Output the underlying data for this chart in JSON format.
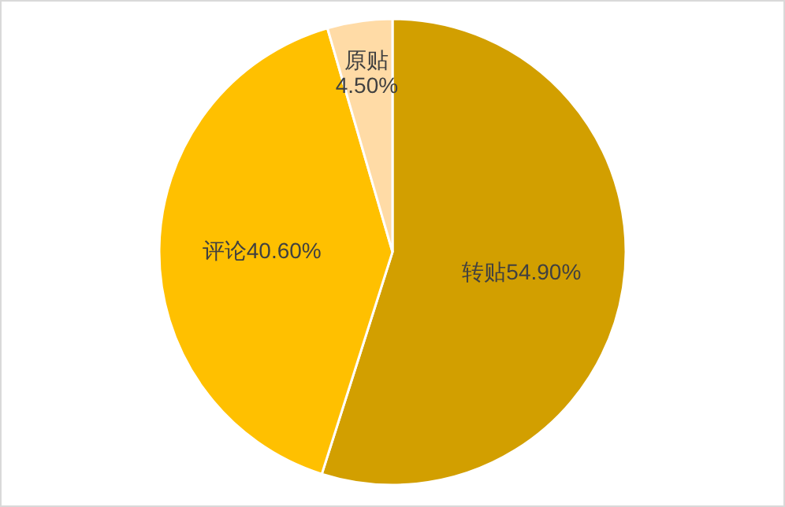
{
  "chart_data": {
    "type": "pie",
    "categories": [
      "转贴",
      "评论",
      "原贴"
    ],
    "values": [
      54.9,
      40.6,
      4.5
    ],
    "value_labels": [
      "54.90%",
      "40.60%",
      "4.50%"
    ],
    "colors": [
      "#d29f00",
      "#ffc000",
      "#ffdba6"
    ]
  }
}
